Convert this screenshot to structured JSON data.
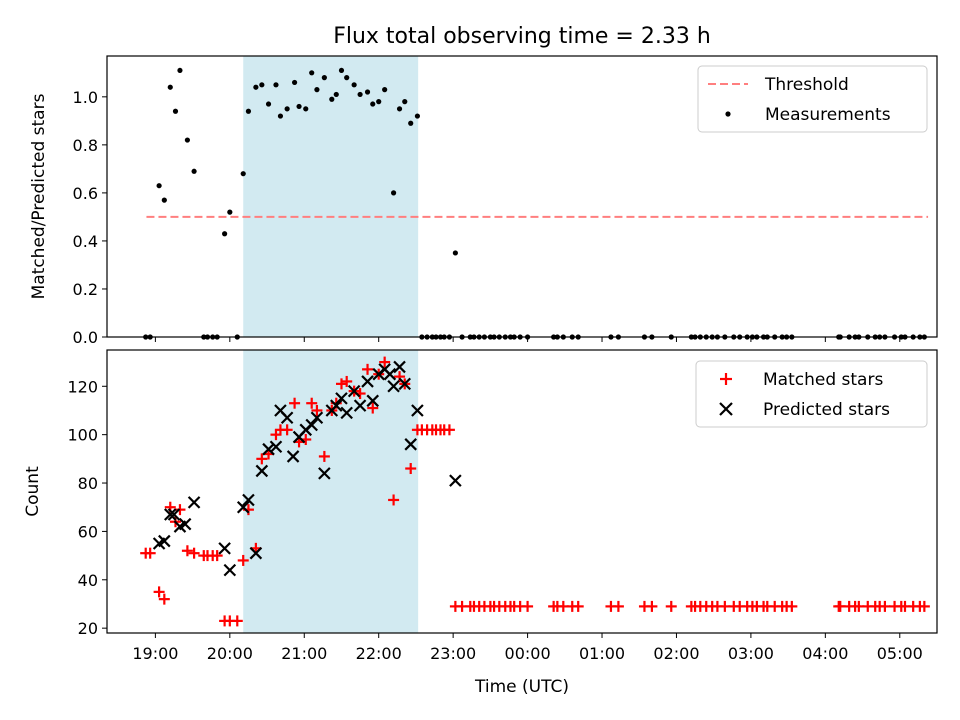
{
  "title": "Flux total observing time = 2.33 h",
  "colors": {
    "threshold": "#ff7f7f",
    "measurement": "#000000",
    "matched": "#ff0000",
    "predicted": "#000000",
    "shade": "#add8e6"
  },
  "chart_data": [
    {
      "type": "scatter",
      "ylabel": "Matched/Predicted stars",
      "xlim_hours": [
        18.35,
        29.5
      ],
      "ylim": [
        0,
        1.17
      ],
      "yticks": [
        0.0,
        0.2,
        0.4,
        0.6,
        0.8,
        1.0
      ],
      "ytick_labels": [
        "0.0",
        "0.2",
        "0.4",
        "0.6",
        "0.8",
        "1.0"
      ],
      "shaded_span_hours": [
        20.18,
        22.53
      ],
      "legend": {
        "position": "upper right",
        "entries": [
          "Threshold",
          "Measurements"
        ]
      },
      "threshold": {
        "name": "Threshold",
        "value": 0.5,
        "x_range_hours": [
          18.88,
          29.38
        ]
      },
      "series": [
        {
          "name": "Measurements",
          "x": [
            18.87,
            18.93,
            19.05,
            19.12,
            19.2,
            19.27,
            19.33,
            19.43,
            19.52,
            19.65,
            19.7,
            19.77,
            19.83,
            19.93,
            20.0,
            20.1,
            20.18,
            20.25,
            20.35,
            20.43,
            20.52,
            20.62,
            20.68,
            20.77,
            20.87,
            20.93,
            21.02,
            21.1,
            21.17,
            21.27,
            21.37,
            21.43,
            21.5,
            21.57,
            21.67,
            21.75,
            21.85,
            21.92,
            22.0,
            22.08,
            22.2,
            22.28,
            22.35,
            22.43,
            22.52,
            22.58,
            22.65,
            22.72,
            22.77,
            22.83,
            22.88,
            22.95,
            23.03,
            23.12,
            23.23,
            23.28,
            23.35,
            23.42,
            23.5,
            23.55,
            23.62,
            23.7,
            23.77,
            23.82,
            23.9,
            24.0,
            24.35,
            24.4,
            24.48,
            24.6,
            24.68,
            25.12,
            25.22,
            25.57,
            25.67,
            25.93,
            26.2,
            26.25,
            26.32,
            26.4,
            26.48,
            26.55,
            26.65,
            26.77,
            26.85,
            26.95,
            27.02,
            27.08,
            27.17,
            27.22,
            27.32,
            27.42,
            27.48,
            27.55,
            28.18,
            28.2,
            28.32,
            28.4,
            28.45,
            28.57,
            28.67,
            28.73,
            28.8,
            28.93,
            29.02,
            29.07,
            29.18,
            29.27,
            29.33
          ],
          "y": [
            0,
            0,
            0.63,
            0.57,
            1.04,
            0.94,
            1.11,
            0.82,
            0.69,
            0,
            0,
            0,
            0,
            0.43,
            0.52,
            0,
            0.68,
            0.94,
            1.04,
            1.05,
            0.97,
            1.05,
            0.92,
            0.95,
            1.06,
            0.96,
            0.95,
            1.1,
            1.03,
            1.08,
            0.99,
            1.01,
            1.11,
            1.08,
            1.05,
            1.01,
            1.02,
            0.97,
            0.98,
            1.03,
            0.6,
            0.95,
            0.98,
            0.89,
            0.92,
            0,
            0,
            0,
            0,
            0,
            0,
            0,
            0.35,
            0,
            0,
            0,
            0,
            0,
            0,
            0,
            0,
            0,
            0,
            0,
            0,
            0,
            0,
            0,
            0,
            0,
            0,
            0,
            0,
            0,
            0,
            0,
            0,
            0,
            0,
            0,
            0,
            0,
            0,
            0,
            0,
            0,
            0,
            0,
            0,
            0,
            0,
            0,
            0,
            0,
            0,
            0,
            0,
            0,
            0,
            0,
            0,
            0,
            0,
            0,
            0,
            0,
            0,
            0,
            0
          ]
        }
      ]
    },
    {
      "type": "scatter",
      "ylabel": "Count",
      "xlabel": "Time (UTC)",
      "xlim_hours": [
        18.35,
        29.5
      ],
      "ylim": [
        18,
        135
      ],
      "yticks": [
        20,
        40,
        60,
        80,
        100,
        120
      ],
      "ytick_labels": [
        "20",
        "40",
        "60",
        "80",
        "100",
        "120"
      ],
      "xticks_hours": [
        19,
        20,
        21,
        22,
        23,
        24,
        25,
        26,
        27,
        28,
        29
      ],
      "xtick_labels": [
        "19:00",
        "20:00",
        "21:00",
        "22:00",
        "23:00",
        "00:00",
        "01:00",
        "02:00",
        "03:00",
        "04:00",
        "05:00"
      ],
      "shaded_span_hours": [
        20.18,
        22.53
      ],
      "legend": {
        "position": "upper right",
        "entries": [
          "Matched stars",
          "Predicted stars"
        ]
      },
      "series": [
        {
          "name": "Matched stars",
          "marker": "plus",
          "x": [
            18.87,
            18.93,
            19.05,
            19.12,
            19.2,
            19.27,
            19.33,
            19.43,
            19.52,
            19.65,
            19.7,
            19.77,
            19.83,
            19.93,
            20.0,
            20.1,
            20.18,
            20.25,
            20.35,
            20.43,
            20.52,
            20.62,
            20.68,
            20.77,
            20.87,
            20.93,
            21.02,
            21.1,
            21.17,
            21.27,
            21.37,
            21.43,
            21.5,
            21.57,
            21.67,
            21.75,
            21.85,
            21.92,
            22.0,
            22.08,
            22.2,
            22.28,
            22.35,
            22.43,
            22.52,
            22.58,
            22.65,
            22.72,
            22.77,
            22.83,
            22.88,
            22.95,
            23.03,
            23.12,
            23.23,
            23.28,
            23.35,
            23.42,
            23.5,
            23.55,
            23.62,
            23.7,
            23.77,
            23.82,
            23.9,
            24.0,
            24.35,
            24.4,
            24.48,
            24.6,
            24.68,
            25.12,
            25.22,
            25.57,
            25.67,
            25.93,
            26.2,
            26.25,
            26.32,
            26.4,
            26.48,
            26.55,
            26.65,
            26.77,
            26.85,
            26.95,
            27.02,
            27.08,
            27.17,
            27.22,
            27.32,
            27.42,
            27.48,
            27.55,
            28.18,
            28.2,
            28.32,
            28.4,
            28.45,
            28.57,
            28.67,
            28.73,
            28.8,
            28.93,
            29.02,
            29.07,
            29.18,
            29.27,
            29.33
          ],
          "y": [
            51,
            51,
            35,
            32,
            70,
            64,
            69,
            52,
            51,
            50,
            50,
            50,
            50,
            23,
            23,
            23,
            48,
            69,
            53,
            90,
            92,
            100,
            102,
            102,
            113,
            97,
            98,
            113,
            110,
            91,
            110,
            113,
            121,
            122,
            118,
            117,
            127,
            111,
            125,
            130,
            73,
            124,
            121,
            86,
            102,
            102,
            102,
            102,
            102,
            102,
            102,
            102,
            29,
            29,
            29,
            29,
            29,
            29,
            29,
            29,
            29,
            29,
            29,
            29,
            29,
            29,
            29,
            29,
            29,
            29,
            29,
            29,
            29,
            29,
            29,
            29,
            29,
            29,
            29,
            29,
            29,
            29,
            29,
            29,
            29,
            29,
            29,
            29,
            29,
            29,
            29,
            29,
            29,
            29,
            29,
            29,
            29,
            29,
            29,
            29,
            29,
            29,
            29,
            29,
            29,
            29,
            29,
            29,
            29
          ]
        },
        {
          "name": "Predicted stars",
          "marker": "x",
          "x": [
            19.05,
            19.12,
            19.2,
            19.25,
            19.33,
            19.4,
            19.52,
            19.93,
            20.0,
            20.18,
            20.25,
            20.35,
            20.43,
            20.52,
            20.62,
            20.68,
            20.77,
            20.85,
            20.93,
            21.02,
            21.1,
            21.17,
            21.27,
            21.37,
            21.43,
            21.5,
            21.57,
            21.67,
            21.75,
            21.85,
            21.92,
            22.0,
            22.08,
            22.15,
            22.2,
            22.28,
            22.35,
            22.43,
            22.52,
            23.03
          ],
          "y": [
            55,
            56,
            67,
            67,
            62,
            63,
            72,
            53,
            44,
            70,
            73,
            51,
            85,
            94,
            95,
            110,
            107,
            91,
            99,
            102,
            104,
            107,
            84,
            110,
            112,
            115,
            109,
            118,
            112,
            122,
            114,
            125,
            127,
            125,
            120,
            128,
            121,
            96,
            110,
            81
          ]
        }
      ]
    }
  ]
}
